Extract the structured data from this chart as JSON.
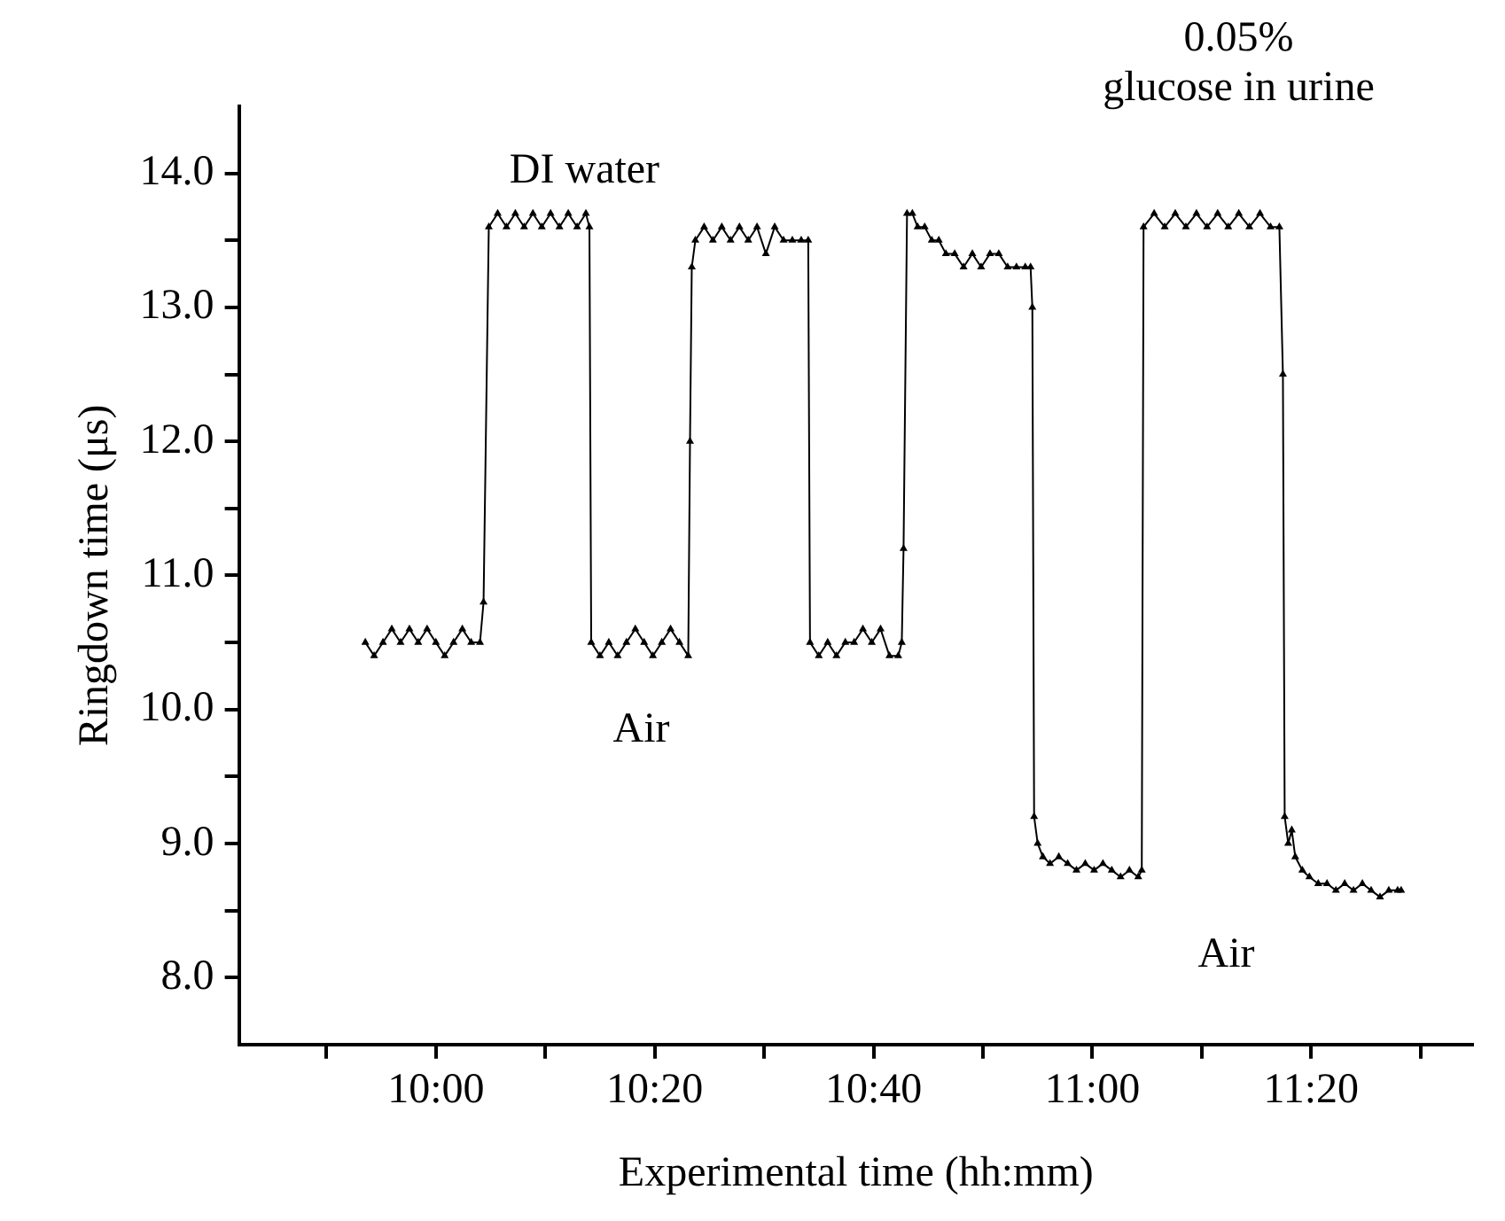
{
  "chart_data": {
    "type": "line",
    "xlabel": "Experimental time (hh:mm)",
    "ylabel": "Ringdown time (μs)",
    "xlim": [
      9.7,
      11.58
    ],
    "xticks": [
      {
        "value": 9.8333,
        "label": null
      },
      {
        "value": 10,
        "label": "10:00"
      },
      {
        "value": 10.1667,
        "label": null
      },
      {
        "value": 10.3333,
        "label": "10:20"
      },
      {
        "value": 10.5,
        "label": null
      },
      {
        "value": 10.6667,
        "label": "10:40"
      },
      {
        "value": 10.8333,
        "label": null
      },
      {
        "value": 11,
        "label": "11:00"
      },
      {
        "value": 11.1667,
        "label": null
      },
      {
        "value": 11.3333,
        "label": "11:20"
      },
      {
        "value": 11.5,
        "label": null
      }
    ],
    "ylim": [
      7.5,
      14.5
    ],
    "yticks": [
      {
        "value": 8,
        "label": "8.0"
      },
      {
        "value": 8.5,
        "label": null
      },
      {
        "value": 9,
        "label": "9.0"
      },
      {
        "value": 9.5,
        "label": null
      },
      {
        "value": 10,
        "label": "10.0"
      },
      {
        "value": 10.5,
        "label": null
      },
      {
        "value": 11,
        "label": "11.0"
      },
      {
        "value": 11.5,
        "label": null
      },
      {
        "value": 12,
        "label": "12.0"
      },
      {
        "value": 12.5,
        "label": null
      },
      {
        "value": 13,
        "label": "13.0"
      },
      {
        "value": 13.5,
        "label": null
      },
      {
        "value": 14,
        "label": "14.0"
      }
    ],
    "grid": false,
    "legend": false,
    "marker": "triangle",
    "line_style": "solid",
    "annotations": [
      "DI water",
      "Air",
      "0.05% glucose in urine",
      "Air"
    ],
    "series": [
      {
        "color": "#000000",
        "x": [
          9.8925,
          9.9059,
          9.9194,
          9.9328,
          9.9462,
          9.9597,
          9.9731,
          9.9866,
          10.0,
          10.0134,
          10.0269,
          10.0403,
          10.0538,
          10.0672,
          10.0726,
          10.0806,
          10.0941,
          10.1075,
          10.121,
          10.1344,
          10.1478,
          10.1613,
          10.1747,
          10.1882,
          10.2016,
          10.2151,
          10.2285,
          10.2339,
          10.2366,
          10.25,
          10.2634,
          10.2769,
          10.2903,
          10.3038,
          10.3172,
          10.3306,
          10.3441,
          10.3575,
          10.371,
          10.3844,
          10.3871,
          10.3898,
          10.3952,
          10.4086,
          10.422,
          10.4355,
          10.4489,
          10.4624,
          10.4758,
          10.4892,
          10.5027,
          10.5161,
          10.5296,
          10.543,
          10.5565,
          10.5672,
          10.5699,
          10.5833,
          10.5968,
          10.6102,
          10.6237,
          10.6371,
          10.6505,
          10.664,
          10.6774,
          10.6909,
          10.7043,
          10.7097,
          10.7124,
          10.7177,
          10.7258,
          10.7339,
          10.7446,
          10.7554,
          10.7661,
          10.7769,
          10.7903,
          10.8038,
          10.8172,
          10.8306,
          10.8441,
          10.8575,
          10.871,
          10.8844,
          10.8978,
          10.9059,
          10.9086,
          10.9113,
          10.9167,
          10.9247,
          10.9355,
          10.9489,
          10.9624,
          10.9758,
          10.9892,
          11.0027,
          11.0161,
          11.0296,
          11.043,
          11.0565,
          11.0699,
          11.0753,
          11.078,
          11.0941,
          11.1102,
          11.1263,
          11.1425,
          11.1586,
          11.1747,
          11.1909,
          11.207,
          11.2231,
          11.2392,
          11.2554,
          11.2715,
          11.2849,
          11.2903,
          11.293,
          11.2984,
          11.3038,
          11.3091,
          11.3199,
          11.3306,
          11.3441,
          11.3575,
          11.371,
          11.3844,
          11.3978,
          11.4113,
          11.4247,
          11.4382,
          11.4516,
          11.4651,
          11.4704
        ],
        "values": [
          10.5,
          10.4,
          10.5,
          10.6,
          10.5,
          10.6,
          10.5,
          10.6,
          10.5,
          10.4,
          10.5,
          10.6,
          10.5,
          10.5,
          10.8,
          13.6,
          13.7,
          13.6,
          13.7,
          13.6,
          13.7,
          13.6,
          13.7,
          13.6,
          13.7,
          13.6,
          13.7,
          13.6,
          10.5,
          10.4,
          10.5,
          10.4,
          10.5,
          10.6,
          10.5,
          10.4,
          10.5,
          10.6,
          10.5,
          10.4,
          12.0,
          13.3,
          13.5,
          13.6,
          13.5,
          13.6,
          13.5,
          13.6,
          13.5,
          13.6,
          13.4,
          13.6,
          13.5,
          13.5,
          13.5,
          13.5,
          10.5,
          10.4,
          10.5,
          10.4,
          10.5,
          10.5,
          10.6,
          10.5,
          10.6,
          10.4,
          10.4,
          10.5,
          11.2,
          13.7,
          13.7,
          13.6,
          13.6,
          13.5,
          13.5,
          13.4,
          13.4,
          13.3,
          13.4,
          13.3,
          13.4,
          13.4,
          13.3,
          13.3,
          13.3,
          13.3,
          13.0,
          9.2,
          9.0,
          8.9,
          8.85,
          8.9,
          8.85,
          8.8,
          8.85,
          8.8,
          8.85,
          8.8,
          8.75,
          8.8,
          8.75,
          8.8,
          13.6,
          13.7,
          13.6,
          13.7,
          13.6,
          13.7,
          13.6,
          13.7,
          13.6,
          13.7,
          13.6,
          13.7,
          13.6,
          13.6,
          12.5,
          9.2,
          9.0,
          9.1,
          8.9,
          8.8,
          8.75,
          8.7,
          8.7,
          8.65,
          8.7,
          8.65,
          8.7,
          8.65,
          8.6,
          8.65,
          8.65,
          8.65
        ]
      }
    ]
  }
}
